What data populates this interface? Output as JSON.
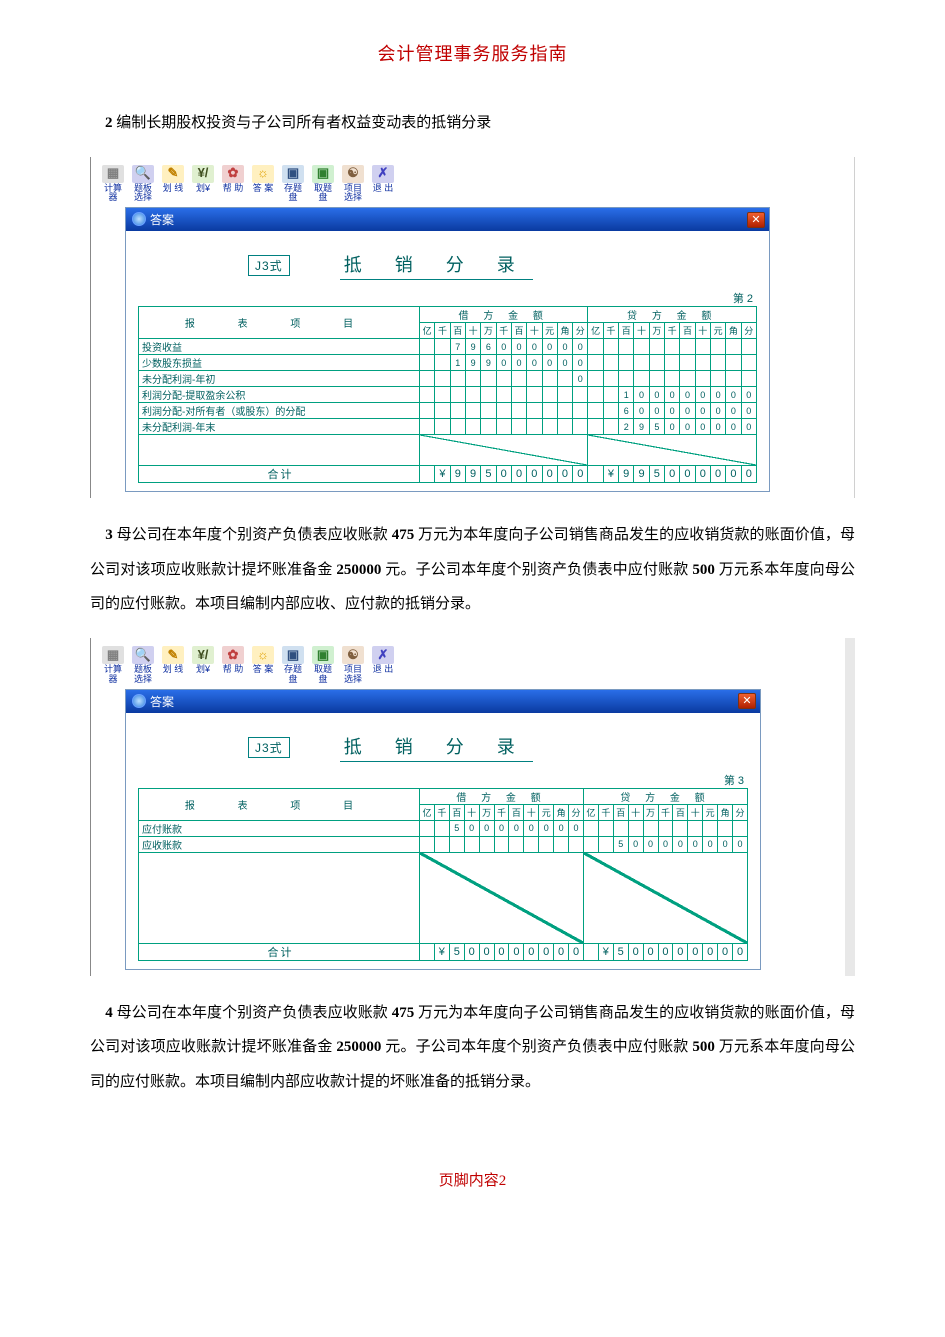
{
  "header": "会计管理事务服务指南",
  "footer_prefix": "页脚内容",
  "footer_num": "2",
  "para2": {
    "num": "2",
    "text": " 编制长期股权投资与子公司所有者权益变动表的抵销分录"
  },
  "para3": {
    "num": "3",
    "t1": " 母公司在本年度个别资产负债表应收账款 ",
    "b1": "475",
    "t2": " 万元为本年度向子公司销售商品发生的应收销货款的账面价值，母公司对该项应收账款计提坏账准备金 ",
    "b2": "250000",
    "t3": " 元。子公司本年度个别资产负债表中应付账款 ",
    "b3": "500",
    "t4": " 万元系本年度向母公司的应付账款。本项目编制内部应收、应付款的抵销分录。"
  },
  "para4": {
    "num": "4",
    "t1": " 母公司在本年度个别资产负债表应收账款 ",
    "b1": "475",
    "t2": " 万元为本年度向子公司销售商品发生的应收销货款的账面价值，母公司对该项应收账款计提坏账准备金 ",
    "b2": "250000",
    "t3": " 元。子公司本年度个别资产负债表中应付账款 ",
    "b3": "500",
    "t4": " 万元系本年度向母公司的应付账款。本项目编制内部应收款计提的坏账准备的抵销分录。"
  },
  "toolbar": [
    {
      "label": "计算器",
      "bg": "#e0e0e0",
      "glyph": "▦",
      "gcolor": "#808080"
    },
    {
      "label": "题板选择",
      "bg": "#d0d0f0",
      "glyph": "🔍",
      "gcolor": "#406080"
    },
    {
      "label": "划 线",
      "bg": "#fff0c0",
      "glyph": "✎",
      "gcolor": "#c08000"
    },
    {
      "label": "划¥",
      "bg": "#e0f0d0",
      "glyph": "¥/",
      "gcolor": "#405020"
    },
    {
      "label": "帮 助",
      "bg": "#f0d0d0",
      "glyph": "✿",
      "gcolor": "#c04040"
    },
    {
      "label": "答 案",
      "bg": "#fff0c0",
      "glyph": "☼",
      "gcolor": "#e0a000"
    },
    {
      "label": "存题盘",
      "bg": "#d0e0f0",
      "glyph": "▣",
      "gcolor": "#305080"
    },
    {
      "label": "取题盘",
      "bg": "#d0f0d0",
      "glyph": "▣",
      "gcolor": "#308030"
    },
    {
      "label": "项目选择",
      "bg": "#f0e0d0",
      "glyph": "☯",
      "gcolor": "#806040"
    },
    {
      "label": "退 出",
      "bg": "#d0d0f0",
      "glyph": "✗",
      "gcolor": "#4040c0"
    }
  ],
  "window_title": "答案",
  "form_type_label": "J3式",
  "form_title": "抵 销 分 录",
  "page_label_prefix": "第 ",
  "dr_label": "借 方 金 额",
  "cr_label": "贷 方 金 额",
  "item_header": "报 表 项 目",
  "digit_headers": [
    "亿",
    "千",
    "百",
    "十",
    "万",
    "千",
    "百",
    "十",
    "元",
    "角",
    "分"
  ],
  "total_label": "合计",
  "shot1": {
    "page_num": "2",
    "rows": [
      {
        "name": "投资收益",
        "dr": [
          "",
          "",
          "7",
          "9",
          "6",
          "0",
          "0",
          "0",
          "0",
          "0",
          "0"
        ],
        "cr": [
          "",
          "",
          "",
          "",
          "",
          "",
          "",
          "",
          "",
          "",
          ""
        ]
      },
      {
        "name": "少数股东损益",
        "dr": [
          "",
          "",
          "1",
          "9",
          "9",
          "0",
          "0",
          "0",
          "0",
          "0",
          "0"
        ],
        "cr": [
          "",
          "",
          "",
          "",
          "",
          "",
          "",
          "",
          "",
          "",
          ""
        ]
      },
      {
        "name": "未分配利润-年初",
        "dr": [
          "",
          "",
          "",
          "",
          "",
          "",
          "",
          "",
          "",
          "",
          "0"
        ],
        "cr": [
          "",
          "",
          "",
          "",
          "",
          "",
          "",
          "",
          "",
          "",
          ""
        ]
      },
      {
        "name": "利润分配-提取盈余公积",
        "dr": [],
        "cr": [
          "",
          "",
          "1",
          "0",
          "0",
          "0",
          "0",
          "0",
          "0",
          "0",
          "0"
        ]
      },
      {
        "name": "利润分配-对所有者（或股东）的分配",
        "dr": [],
        "cr": [
          "",
          "",
          "6",
          "0",
          "0",
          "0",
          "0",
          "0",
          "0",
          "0",
          "0"
        ]
      },
      {
        "name": "未分配利润-年末",
        "dr": [],
        "cr": [
          "",
          "",
          "2",
          "9",
          "5",
          "0",
          "0",
          "0",
          "0",
          "0",
          "0"
        ]
      }
    ],
    "empty_rows": 2,
    "total_dr": [
      "",
      "¥",
      "9",
      "9",
      "5",
      "0",
      "0",
      "0",
      "0",
      "0",
      "0"
    ],
    "total_cr": [
      "",
      "¥",
      "9",
      "9",
      "5",
      "0",
      "0",
      "0",
      "0",
      "0",
      "0"
    ]
  },
  "shot2": {
    "page_num": "3",
    "rows": [
      {
        "name": "应付账款",
        "dr": [
          "",
          "",
          "5",
          "0",
          "0",
          "0",
          "0",
          "0",
          "0",
          "0",
          "0"
        ],
        "cr": [
          "",
          "",
          "",
          "",
          "",
          "",
          "",
          "",
          "",
          "",
          ""
        ]
      },
      {
        "name": "应收账款",
        "dr": [
          "",
          "",
          "",
          "",
          "",
          "",
          "",
          "",
          "",
          "",
          ""
        ],
        "cr": [
          "",
          "",
          "5",
          "0",
          "0",
          "0",
          "0",
          "0",
          "0",
          "0",
          "0"
        ]
      }
    ],
    "empty_rows": 6,
    "total_dr": [
      "",
      "¥",
      "5",
      "0",
      "0",
      "0",
      "0",
      "0",
      "0",
      "0",
      "0"
    ],
    "total_cr": [
      "",
      "¥",
      "5",
      "0",
      "0",
      "0",
      "0",
      "0",
      "0",
      "0",
      "0"
    ]
  },
  "colors": {
    "header_red": "#c00000",
    "titlebar": "#1a54c4",
    "ledger_border": "#00a080",
    "ledger_text": "#006060"
  }
}
